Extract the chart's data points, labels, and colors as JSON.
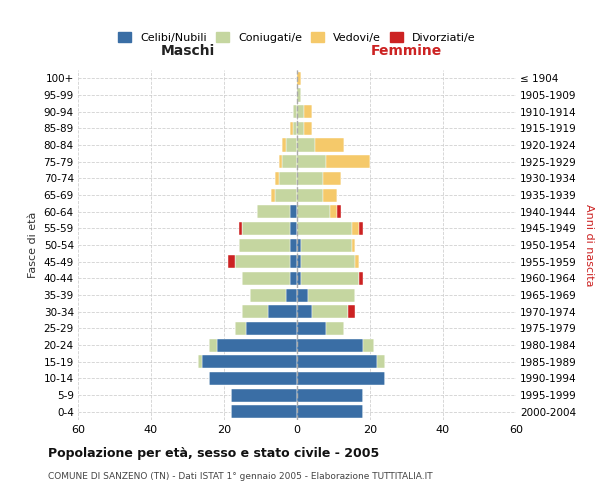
{
  "age_groups": [
    "0-4",
    "5-9",
    "10-14",
    "15-19",
    "20-24",
    "25-29",
    "30-34",
    "35-39",
    "40-44",
    "45-49",
    "50-54",
    "55-59",
    "60-64",
    "65-69",
    "70-74",
    "75-79",
    "80-84",
    "85-89",
    "90-94",
    "95-99",
    "100+"
  ],
  "birth_years": [
    "2000-2004",
    "1995-1999",
    "1990-1994",
    "1985-1989",
    "1980-1984",
    "1975-1979",
    "1970-1974",
    "1965-1969",
    "1960-1964",
    "1955-1959",
    "1950-1954",
    "1945-1949",
    "1940-1944",
    "1935-1939",
    "1930-1934",
    "1925-1929",
    "1920-1924",
    "1915-1919",
    "1910-1914",
    "1905-1909",
    "≤ 1904"
  ],
  "colors": {
    "celibi": "#3a6ea5",
    "coniugati": "#c5d6a0",
    "vedovi": "#f5c96a",
    "divorziati": "#cc2222"
  },
  "maschi": {
    "celibi": [
      18,
      18,
      24,
      26,
      22,
      14,
      8,
      3,
      2,
      2,
      2,
      2,
      2,
      0,
      0,
      0,
      0,
      0,
      0,
      0,
      0
    ],
    "coniugati": [
      0,
      0,
      0,
      1,
      2,
      3,
      7,
      10,
      13,
      15,
      14,
      13,
      9,
      6,
      5,
      4,
      3,
      1,
      1,
      0,
      0
    ],
    "vedovi": [
      0,
      0,
      0,
      0,
      0,
      0,
      0,
      0,
      0,
      0,
      0,
      0,
      0,
      1,
      1,
      1,
      1,
      1,
      0,
      0,
      0
    ],
    "divorziati": [
      0,
      0,
      0,
      0,
      0,
      0,
      0,
      0,
      0,
      2,
      0,
      1,
      0,
      0,
      0,
      0,
      0,
      0,
      0,
      0,
      0
    ]
  },
  "femmine": {
    "celibi": [
      18,
      18,
      24,
      22,
      18,
      8,
      4,
      3,
      1,
      1,
      1,
      0,
      0,
      0,
      0,
      0,
      0,
      0,
      0,
      0,
      0
    ],
    "coniugati": [
      0,
      0,
      0,
      2,
      3,
      5,
      10,
      13,
      16,
      15,
      14,
      15,
      9,
      7,
      7,
      8,
      5,
      2,
      2,
      1,
      0
    ],
    "vedovi": [
      0,
      0,
      0,
      0,
      0,
      0,
      0,
      0,
      0,
      1,
      1,
      2,
      2,
      4,
      5,
      12,
      8,
      2,
      2,
      0,
      1
    ],
    "divorziati": [
      0,
      0,
      0,
      0,
      0,
      0,
      2,
      0,
      1,
      0,
      0,
      1,
      1,
      0,
      0,
      0,
      0,
      0,
      0,
      0,
      0
    ]
  },
  "xlim": 60,
  "title": "Popolazione per età, sesso e stato civile - 2005",
  "subtitle": "COMUNE DI SANZENO (TN) - Dati ISTAT 1° gennaio 2005 - Elaborazione TUTTITALIA.IT",
  "ylabel_left": "Fasce di età",
  "ylabel_right": "Anni di nascita",
  "xlabel_maschi": "Maschi",
  "xlabel_femmine": "Femmine",
  "legend_labels": [
    "Celibi/Nubili",
    "Coniugati/e",
    "Vedovi/e",
    "Divorziati/e"
  ],
  "background_color": "#ffffff",
  "grid_color": "#cccccc"
}
